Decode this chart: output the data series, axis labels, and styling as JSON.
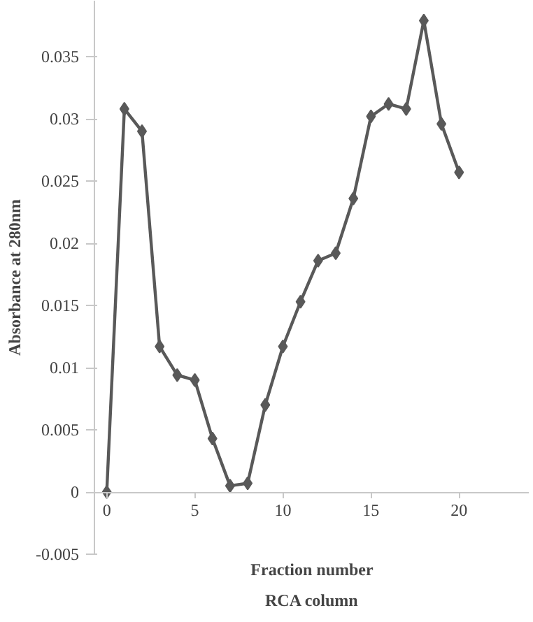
{
  "chart_data": {
    "type": "line",
    "title": "RCA column",
    "xlabel": "Fraction number",
    "ylabel": "Absorbance at 280nm",
    "x": [
      0,
      1,
      2,
      3,
      4,
      5,
      6,
      7,
      8,
      9,
      10,
      11,
      12,
      13,
      14,
      15,
      16,
      17,
      18,
      19,
      20
    ],
    "series": [
      {
        "color": "#595959",
        "values": [
          0,
          0.0308,
          0.029,
          0.0117,
          0.0094,
          0.009,
          0.0043,
          0.0005,
          0.0007,
          0.007,
          0.0117,
          0.0153,
          0.0186,
          0.0192,
          0.0236,
          0.0302,
          0.0312,
          0.0308,
          0.0379,
          0.0296,
          0.0257
        ]
      }
    ],
    "xlim": [
      -0.7,
      24
    ],
    "ylim": [
      -0.005,
      0.0395
    ],
    "xticks": [
      0,
      5,
      10,
      15,
      20
    ],
    "yticks": [
      -0.005,
      0,
      0.005,
      0.01,
      0.015,
      0.02,
      0.025,
      0.03,
      0.035
    ],
    "marker": "diamond",
    "line_style": "solid",
    "grid": false
  }
}
